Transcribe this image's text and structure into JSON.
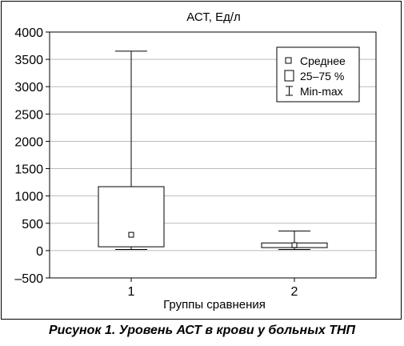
{
  "caption": "Рисунок 1.  Уровень АСТ в крови у больных ТНП",
  "chart_data": {
    "type": "box",
    "title": "АСТ, Ед/л",
    "xlabel": "Группы сравнения",
    "ylabel": "",
    "ylim": [
      -500,
      4000
    ],
    "yticks": [
      -500,
      0,
      500,
      1000,
      1500,
      2000,
      2500,
      3000,
      3500,
      4000
    ],
    "categories": [
      "1",
      "2"
    ],
    "boxes": [
      {
        "category": "1",
        "min": 20,
        "q1": 70,
        "mean": 290,
        "q3": 1170,
        "max": 3650
      },
      {
        "category": "2",
        "min": 20,
        "q1": 55,
        "mean": 100,
        "q3": 140,
        "max": 360
      }
    ],
    "legend": {
      "position": "top-right",
      "items": [
        {
          "symbol": "mean-square",
          "label": "Среднее"
        },
        {
          "symbol": "box",
          "label": "25–75 %"
        },
        {
          "symbol": "whisker",
          "label": "Min-max"
        }
      ]
    },
    "grid": true
  }
}
